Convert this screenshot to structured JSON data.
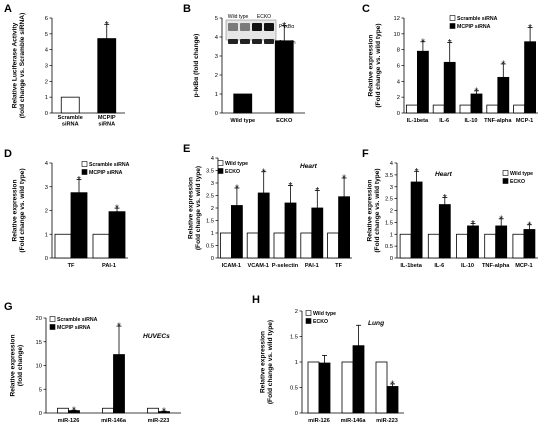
{
  "chart_data": [
    {
      "id": "A",
      "letter": "A",
      "type": "bar",
      "ylabel": "Relative Luciferase Activity\n(fold change vs. Scramble siRNA)",
      "ylim": [
        0,
        6
      ],
      "yticks": [
        0,
        1,
        2,
        3,
        4,
        5,
        6
      ],
      "categories": [
        "Scramble\nsiRNA",
        "MCPIP\nsiRNA"
      ],
      "series": [
        {
          "values": [
            1.0,
            4.7
          ],
          "errors": [
            0,
            0.9
          ],
          "fills": [
            "#ffffff",
            "#000000"
          ],
          "stars": [
            false,
            true
          ]
        }
      ],
      "legend": []
    },
    {
      "id": "B",
      "letter": "B",
      "type": "bar",
      "ylabel": "p-IκBα (fold change)",
      "ylim": [
        0,
        5
      ],
      "yticks": [
        0,
        1,
        2,
        3,
        4,
        5
      ],
      "categories": [
        "Wild type",
        "ECKO"
      ],
      "series": [
        {
          "values": [
            1.0,
            3.8
          ],
          "errors": [
            0,
            0.8
          ],
          "fills": [
            "#000000",
            "#000000"
          ],
          "stars": [
            false,
            true
          ]
        }
      ],
      "legend": [],
      "blot": {
        "lanes": [
          "Wild type",
          "ECKO"
        ],
        "bands": [
          "P-IκBα",
          "β- actin"
        ]
      }
    },
    {
      "id": "C",
      "letter": "C",
      "type": "bar",
      "ylabel": "Relative expression\n(Fold change vs. wild type)",
      "ylim": [
        0,
        12
      ],
      "yticks": [
        0,
        2,
        4,
        6,
        8,
        10,
        12
      ],
      "categories": [
        "IL-1beta",
        "IL-6",
        "IL-10",
        "TNF-alpha",
        "MCP-1"
      ],
      "series": [
        {
          "name": "Scramble siRNA",
          "values": [
            1,
            1,
            1,
            1,
            1
          ],
          "errors": [
            0,
            0,
            0,
            0,
            0
          ],
          "fill": "#ffffff",
          "stars": [
            false,
            false,
            false,
            false,
            false
          ]
        },
        {
          "name": "MCPIP siRNA",
          "values": [
            7.8,
            6.4,
            2.4,
            4.5,
            9.0
          ],
          "errors": [
            1.2,
            2.5,
            0.4,
            1.7,
            1.8
          ],
          "fill": "#000000",
          "stars": [
            true,
            true,
            true,
            true,
            true
          ]
        }
      ]
    },
    {
      "id": "D",
      "letter": "D",
      "type": "bar",
      "ylabel": "Relative expression\n(Fold change vs. wild type)",
      "ylim": [
        0,
        4
      ],
      "yticks": [
        0,
        1,
        2,
        3,
        4
      ],
      "categories": [
        "TF",
        "PAI-1"
      ],
      "series": [
        {
          "name": "Scramble siRNA",
          "values": [
            1,
            1
          ],
          "errors": [
            0,
            0
          ],
          "fill": "#ffffff",
          "stars": [
            false,
            false
          ]
        },
        {
          "name": "MCPIP siRNA",
          "values": [
            2.75,
            1.95
          ],
          "errors": [
            0.55,
            0.15
          ],
          "fill": "#000000",
          "stars": [
            true,
            true
          ]
        }
      ]
    },
    {
      "id": "E",
      "letter": "E",
      "type": "bar",
      "ylabel": "Relative expression\n(Fold change vs. wild type)",
      "ylim": [
        0,
        4
      ],
      "yticks": [
        0,
        0.5,
        1,
        1.5,
        2,
        2.5,
        3,
        3.5,
        4
      ],
      "categories": [
        "ICAM-1",
        "VCAM-1",
        "P-selectin",
        "PAI-1",
        "TF"
      ],
      "note": "Heart",
      "series": [
        {
          "name": "Wild type",
          "values": [
            1,
            1,
            1,
            1,
            1
          ],
          "errors": [
            0,
            0,
            0,
            0,
            0
          ],
          "fill": "#ffffff",
          "stars": [
            false,
            false,
            false,
            false,
            false
          ]
        },
        {
          "name": "ECKO",
          "values": [
            2.1,
            2.6,
            2.2,
            2.0,
            2.45
          ],
          "errors": [
            0.7,
            0.85,
            0.7,
            0.7,
            0.75
          ],
          "fill": "#000000",
          "stars": [
            true,
            true,
            true,
            true,
            true
          ]
        }
      ]
    },
    {
      "id": "F",
      "letter": "F",
      "type": "bar",
      "ylabel": "Relative expression\n(Fold change vs. wild type)",
      "ylim": [
        0,
        4
      ],
      "yticks": [
        0,
        0.5,
        1,
        1.5,
        2,
        2.5,
        3,
        3.5,
        4
      ],
      "categories": [
        "IL-1beta",
        "IL-6",
        "IL-10",
        "TNF-alpha",
        "MCP-1"
      ],
      "note": "Heart",
      "series": [
        {
          "name": "Wild type",
          "values": [
            1,
            1,
            1,
            1,
            1
          ],
          "errors": [
            0,
            0,
            0,
            0,
            0
          ],
          "fill": "#ffffff",
          "stars": [
            false,
            false,
            false,
            false,
            false
          ]
        },
        {
          "name": "ECKO",
          "values": [
            3.2,
            2.25,
            1.35,
            1.35,
            1.2
          ],
          "errors": [
            0.45,
            0.3,
            0.1,
            0.3,
            0.2
          ],
          "fill": "#000000",
          "stars": [
            true,
            true,
            true,
            true,
            true
          ]
        }
      ]
    },
    {
      "id": "G",
      "letter": "G",
      "type": "bar",
      "ylabel": "Relative expression\n(fold change)",
      "ylim": [
        0,
        20
      ],
      "yticks": [
        0,
        5,
        10,
        15,
        20
      ],
      "categories": [
        "miR-126",
        "miR-146a",
        "miR-223"
      ],
      "note": "HUVECs",
      "series": [
        {
          "name": "Scramble siRNA",
          "values": [
            1,
            1,
            1
          ],
          "errors": [
            0,
            0,
            0
          ],
          "fill": "#ffffff",
          "stars": [
            false,
            false,
            false
          ]
        },
        {
          "name": "MCPIP siRNA",
          "values": [
            0.5,
            12.3,
            0.3
          ],
          "errors": [
            0.1,
            6.0,
            0.1
          ],
          "fill": "#000000",
          "stars": [
            true,
            true,
            true
          ]
        }
      ]
    },
    {
      "id": "H",
      "letter": "H",
      "type": "bar",
      "ylabel": "Relative expression\n(Fold change vs. wild type)",
      "ylim": [
        0,
        2
      ],
      "yticks": [
        0,
        0.5,
        1,
        1.5,
        2
      ],
      "categories": [
        "miR-126",
        "miR-146a",
        "miR-223"
      ],
      "note": "Lung",
      "series": [
        {
          "name": "Wild type",
          "values": [
            1,
            1,
            1
          ],
          "errors": [
            0,
            0,
            0
          ],
          "fill": "#ffffff",
          "stars": [
            false,
            false,
            false
          ]
        },
        {
          "name": "ECKO",
          "values": [
            0.98,
            1.32,
            0.52
          ],
          "errors": [
            0.15,
            0.4,
            0.05
          ],
          "fill": "#000000",
          "stars": [
            false,
            false,
            true
          ]
        }
      ]
    }
  ]
}
